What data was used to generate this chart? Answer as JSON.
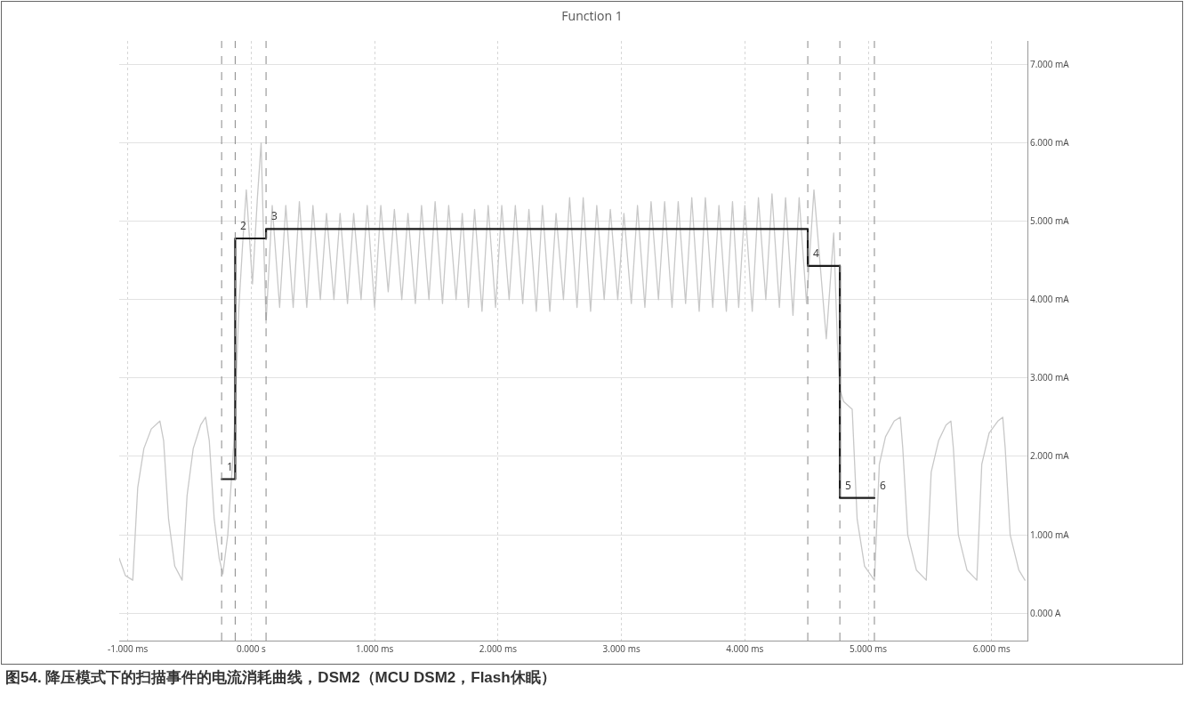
{
  "chart_data": {
    "type": "line",
    "title": "Function 1",
    "annotations": [
      {
        "text": "1",
        "x": -0.24,
        "y": 1.71
      },
      {
        "text": "2",
        "x": -0.13,
        "y": 4.78
      },
      {
        "text": "3",
        "x": 0.12,
        "y": 4.9
      },
      {
        "text": "4",
        "x": 4.51,
        "y": 4.43
      },
      {
        "text": "5",
        "x": 4.77,
        "y": 1.47
      },
      {
        "text": "6",
        "x": 5.05,
        "y": 1.47
      },
      "图54. 降压模式下的扫描事件的电流消耗曲线，DSM2（MCU DSM2，Flash休眠）"
    ],
    "series": [
      {
        "color": "#c8c8c8",
        "x": [
          -1.07,
          -1.02,
          -0.96,
          -0.92,
          -0.87,
          -0.81,
          -0.74,
          -0.71,
          -0.67,
          -0.62,
          -0.56,
          -0.52,
          -0.47,
          -0.41,
          -0.37,
          -0.34,
          -0.3,
          -0.26,
          -0.23,
          -0.19,
          -0.14,
          -0.1,
          -0.07,
          -0.04,
          0.01,
          0.05,
          0.08,
          0.1,
          0.12,
          0.17,
          0.23,
          0.28,
          0.34,
          0.39,
          0.45,
          0.5,
          0.56,
          0.61,
          0.67,
          0.72,
          0.78,
          0.83,
          0.89,
          0.94,
          1.0,
          1.05,
          1.11,
          1.16,
          1.22,
          1.27,
          1.33,
          1.38,
          1.44,
          1.49,
          1.55,
          1.6,
          1.66,
          1.71,
          1.76,
          1.81,
          1.87,
          1.92,
          1.98,
          2.03,
          2.09,
          2.14,
          2.2,
          2.25,
          2.31,
          2.36,
          2.42,
          2.47,
          2.53,
          2.58,
          2.64,
          2.69,
          2.75,
          2.8,
          2.86,
          2.91,
          2.97,
          3.02,
          3.08,
          3.13,
          3.19,
          3.24,
          3.3,
          3.35,
          3.41,
          3.46,
          3.52,
          3.57,
          3.63,
          3.68,
          3.74,
          3.79,
          3.85,
          3.9,
          3.95,
          4.0,
          4.06,
          4.11,
          4.17,
          4.22,
          4.28,
          4.33,
          4.39,
          4.44,
          4.5,
          4.56,
          4.66,
          4.72,
          4.75,
          4.77,
          4.8,
          4.87,
          4.91,
          4.97,
          5.05,
          5.09,
          5.14,
          5.21,
          5.26,
          5.28,
          5.32,
          5.39,
          5.47,
          5.51,
          5.57,
          5.63,
          5.67,
          5.69,
          5.73,
          5.8,
          5.88,
          5.92,
          5.98,
          6.05,
          6.09,
          6.11,
          6.15,
          6.22,
          6.27
        ],
        "values": [
          0.7,
          0.48,
          0.42,
          1.6,
          2.1,
          2.35,
          2.45,
          2.2,
          1.2,
          0.6,
          0.42,
          1.5,
          2.1,
          2.4,
          2.5,
          2.2,
          1.2,
          0.7,
          0.5,
          1.0,
          2.2,
          3.9,
          4.7,
          5.4,
          4.2,
          5.3,
          6.0,
          4.8,
          3.7,
          5.2,
          3.9,
          5.2,
          3.9,
          5.25,
          3.9,
          5.2,
          4.0,
          5.1,
          4.0,
          5.1,
          3.95,
          5.1,
          4.0,
          5.2,
          3.9,
          5.2,
          4.1,
          5.15,
          4.0,
          5.1,
          3.95,
          5.2,
          4.0,
          5.25,
          3.95,
          5.2,
          4.0,
          5.1,
          3.9,
          5.15,
          3.85,
          5.2,
          3.9,
          5.2,
          4.0,
          5.2,
          3.95,
          5.15,
          3.85,
          5.2,
          3.85,
          5.1,
          4.0,
          5.3,
          3.9,
          5.3,
          3.85,
          5.2,
          4.0,
          5.15,
          4.0,
          5.1,
          3.95,
          5.2,
          3.9,
          5.25,
          4.0,
          5.25,
          3.9,
          5.25,
          3.95,
          5.3,
          3.85,
          5.3,
          3.9,
          5.2,
          3.85,
          5.25,
          3.9,
          5.2,
          3.85,
          5.3,
          4.0,
          5.35,
          3.9,
          5.3,
          3.8,
          5.3,
          3.95,
          5.4,
          3.5,
          4.85,
          3.45,
          2.85,
          2.7,
          2.6,
          1.2,
          0.6,
          0.42,
          1.9,
          2.25,
          2.45,
          2.5,
          2.1,
          1.0,
          0.55,
          0.42,
          1.8,
          2.2,
          2.4,
          2.45,
          2.1,
          1.0,
          0.55,
          0.42,
          1.9,
          2.3,
          2.45,
          2.5,
          2.1,
          1.0,
          0.55,
          0.42
        ]
      },
      {
        "type": "step",
        "color": "#1a1a1a",
        "x": [
          -0.24,
          -0.13,
          0.12,
          4.51,
          4.77,
          5.05
        ],
        "values": [
          1.71,
          4.78,
          4.9,
          4.43,
          1.47,
          1.47
        ]
      }
    ],
    "xlim": [
      -1.07,
      6.29
    ],
    "xticks": [
      {
        "value": -1,
        "label": "-1.000 ms"
      },
      {
        "value": 0,
        "label": "0.000 s"
      },
      {
        "value": 1,
        "label": "1.000 ms"
      },
      {
        "value": 2,
        "label": "2.000 ms"
      },
      {
        "value": 3,
        "label": "3.000 ms"
      },
      {
        "value": 4,
        "label": "4.000 ms"
      },
      {
        "value": 5,
        "label": "5.000 ms"
      },
      {
        "value": 6,
        "label": "6.000 ms"
      }
    ],
    "ylim": [
      -0.35,
      7.3
    ],
    "yticks": [
      {
        "value": 0,
        "label": "0.000 A"
      },
      {
        "value": 1,
        "label": "1.000 mA"
      },
      {
        "value": 2,
        "label": "2.000 mA"
      },
      {
        "value": 3,
        "label": "3.000 mA"
      },
      {
        "value": 4,
        "label": "4.000 mA"
      },
      {
        "value": 5,
        "label": "5.000 mA"
      },
      {
        "value": 6,
        "label": "6.000 mA"
      },
      {
        "value": 7,
        "label": "7.000 mA"
      }
    ],
    "ref_lines": [
      {
        "axis": "x",
        "value": -0.24,
        "line_style": "dashed"
      },
      {
        "axis": "x",
        "value": -0.13,
        "line_style": "dashed"
      },
      {
        "axis": "x",
        "value": 0.12,
        "line_style": "dashed"
      },
      {
        "axis": "x",
        "value": 4.51,
        "line_style": "dashed"
      },
      {
        "axis": "x",
        "value": 4.77,
        "line_style": "dashed"
      },
      {
        "axis": "x",
        "value": 5.05,
        "line_style": "dashed"
      }
    ],
    "grid": true
  }
}
